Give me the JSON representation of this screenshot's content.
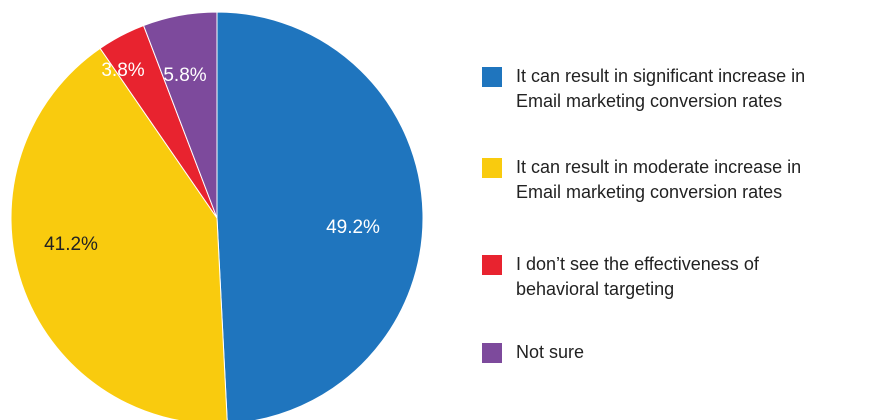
{
  "chart_data": {
    "type": "pie",
    "title": "",
    "slices": [
      {
        "label": "It can result in significant increase in\nEmail marketing conversion rates",
        "value": 49.2,
        "display": "49.2%",
        "color": "#1f75be",
        "text_color": "#ffffff"
      },
      {
        "label": "It can result in moderate increase in\nEmail marketing conversion rates",
        "value": 41.2,
        "display": "41.2%",
        "color": "#f9cb0e",
        "text_color": "#222222"
      },
      {
        "label": "I don’t see the effectiveness of\nbehavioral targeting",
        "value": 3.8,
        "display": "3.8%",
        "color": "#e8232f",
        "text_color": "#ffffff"
      },
      {
        "label": "Not sure",
        "value": 5.8,
        "display": "5.8%",
        "color": "#7d4a9c",
        "text_color": "#ffffff"
      }
    ],
    "legend_position": "right",
    "start_angle": "top",
    "direction": "clockwise"
  }
}
